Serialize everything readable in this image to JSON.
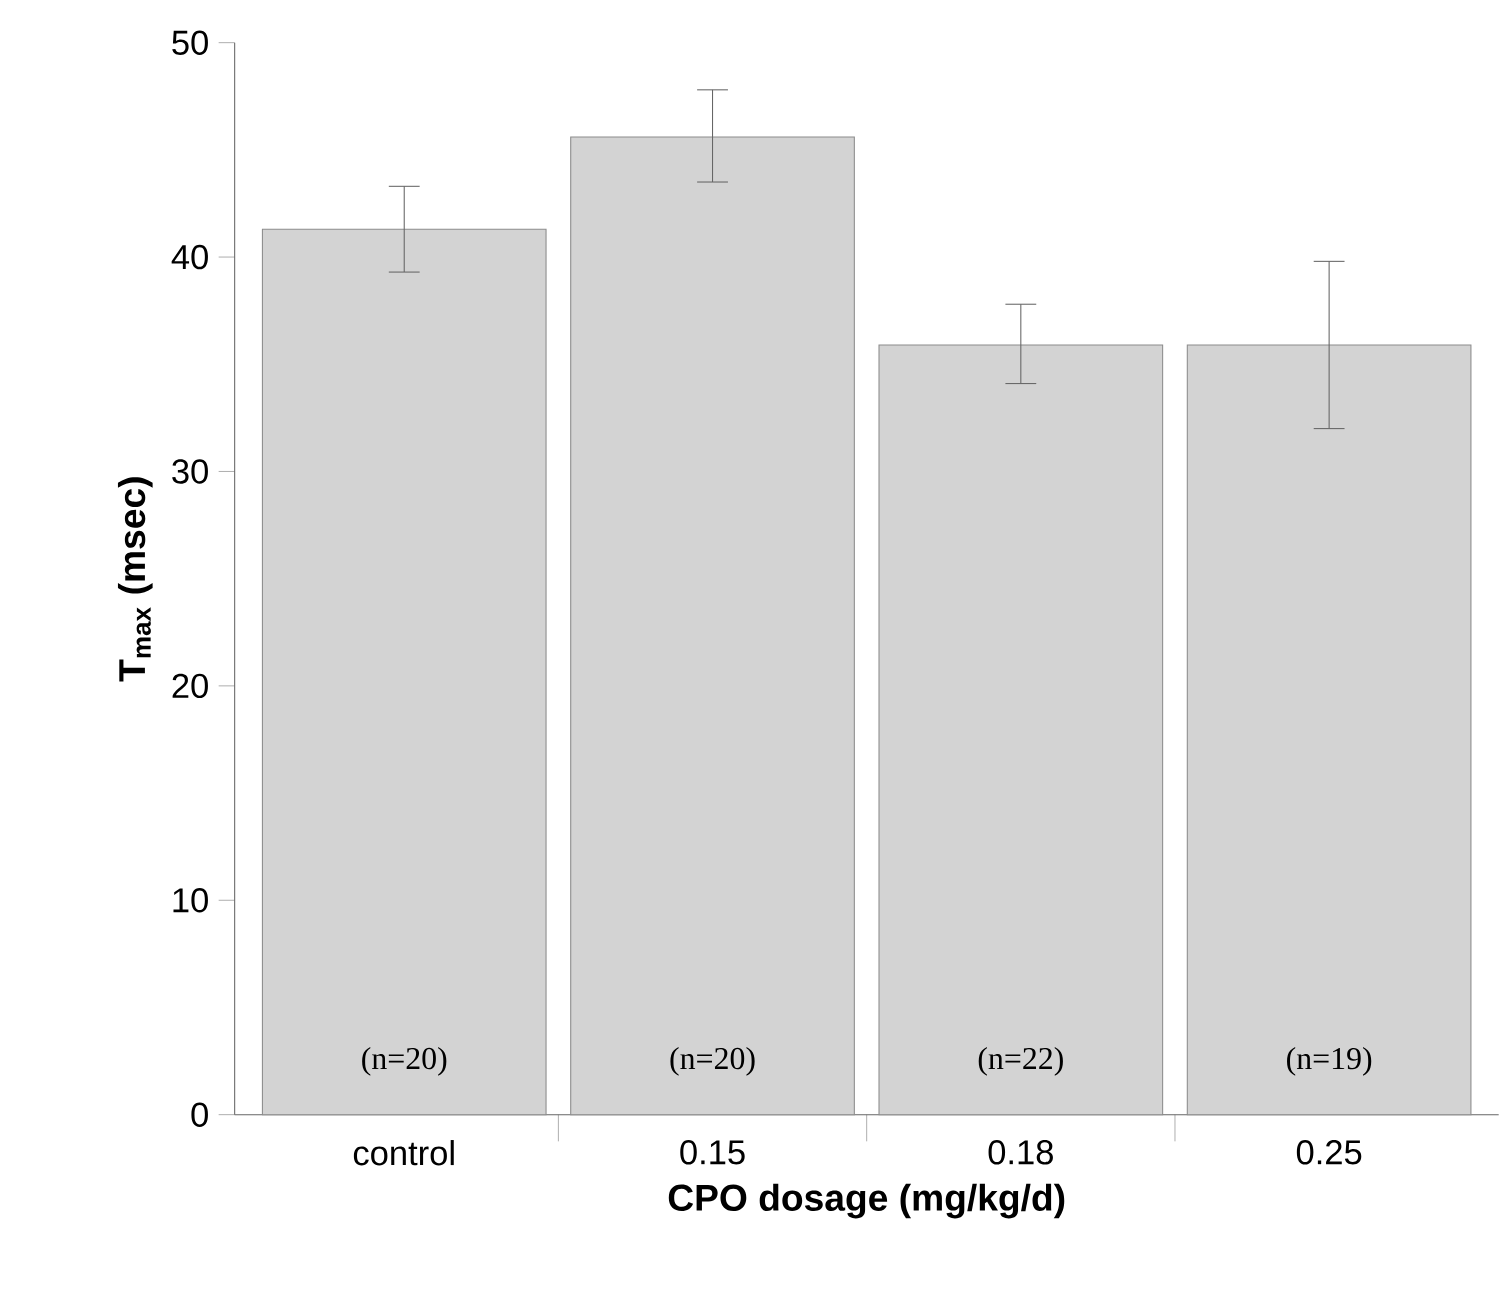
{
  "chart_data": {
    "type": "bar",
    "xlabel": "CPO dosage (mg/kg/d)",
    "ylabel": "T$_{max}$ (msec)",
    "categories": [
      "control",
      "0.15",
      "0.18",
      "0.25"
    ],
    "values": [
      41.3,
      45.6,
      35.9,
      35.9
    ],
    "errors": [
      [
        39.3,
        43.3
      ],
      [
        43.5,
        47.8
      ],
      [
        34.1,
        37.8
      ],
      [
        32.0,
        39.8
      ]
    ],
    "color": "#d3d3d3",
    "ylim": [
      0,
      50
    ],
    "yticks": [
      0,
      10,
      20,
      30,
      40,
      50
    ],
    "annotations": [
      "(n=20)",
      "(n=20)",
      "(n=22)",
      "(n=19)"
    ]
  }
}
